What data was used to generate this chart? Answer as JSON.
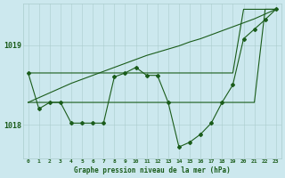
{
  "background_color": "#cce8ee",
  "grid_color": "#aacccc",
  "line_color": "#1a5c1a",
  "title": "Graphe pression niveau de la mer (hPa)",
  "xlim": [
    -0.5,
    23.5
  ],
  "ylim": [
    1017.58,
    1019.52
  ],
  "yticks": [
    1018.0,
    1019.0
  ],
  "xticks": [
    0,
    1,
    2,
    3,
    4,
    5,
    6,
    7,
    8,
    9,
    10,
    11,
    12,
    13,
    14,
    15,
    16,
    17,
    18,
    19,
    20,
    21,
    22,
    23
  ],
  "hours": [
    0,
    1,
    2,
    3,
    4,
    5,
    6,
    7,
    8,
    9,
    10,
    11,
    12,
    13,
    14,
    15,
    16,
    17,
    18,
    19,
    20,
    21,
    22,
    23
  ],
  "pressure_main": [
    1018.65,
    1018.2,
    1018.28,
    1018.28,
    1018.02,
    1018.02,
    1018.02,
    1018.02,
    1018.6,
    1018.65,
    1018.72,
    1018.62,
    1018.62,
    1018.28,
    1017.72,
    1017.78,
    1017.88,
    1018.02,
    1018.28,
    1018.5,
    1019.08,
    1019.2,
    1019.32,
    1019.45
  ],
  "pressure_upper": [
    1018.65,
    1018.65,
    1018.65,
    1018.65,
    1018.65,
    1018.65,
    1018.65,
    1018.65,
    1018.65,
    1018.65,
    1018.65,
    1018.65,
    1018.65,
    1018.65,
    1018.65,
    1018.65,
    1018.65,
    1018.65,
    1018.65,
    1018.65,
    1019.45,
    1019.45,
    1019.45,
    1019.45
  ],
  "pressure_lower": [
    1018.28,
    1018.28,
    1018.28,
    1018.28,
    1018.28,
    1018.28,
    1018.28,
    1018.28,
    1018.28,
    1018.28,
    1018.28,
    1018.28,
    1018.28,
    1018.28,
    1018.28,
    1018.28,
    1018.28,
    1018.28,
    1018.28,
    1018.28,
    1018.28,
    1018.28,
    1019.45,
    1019.45
  ],
  "pressure_linear": [
    1018.28,
    1018.34,
    1018.4,
    1018.46,
    1018.52,
    1018.57,
    1018.62,
    1018.67,
    1018.72,
    1018.77,
    1018.82,
    1018.87,
    1018.91,
    1018.95,
    1018.99,
    1019.04,
    1019.08,
    1019.13,
    1019.18,
    1019.23,
    1019.28,
    1019.33,
    1019.39,
    1019.45
  ]
}
